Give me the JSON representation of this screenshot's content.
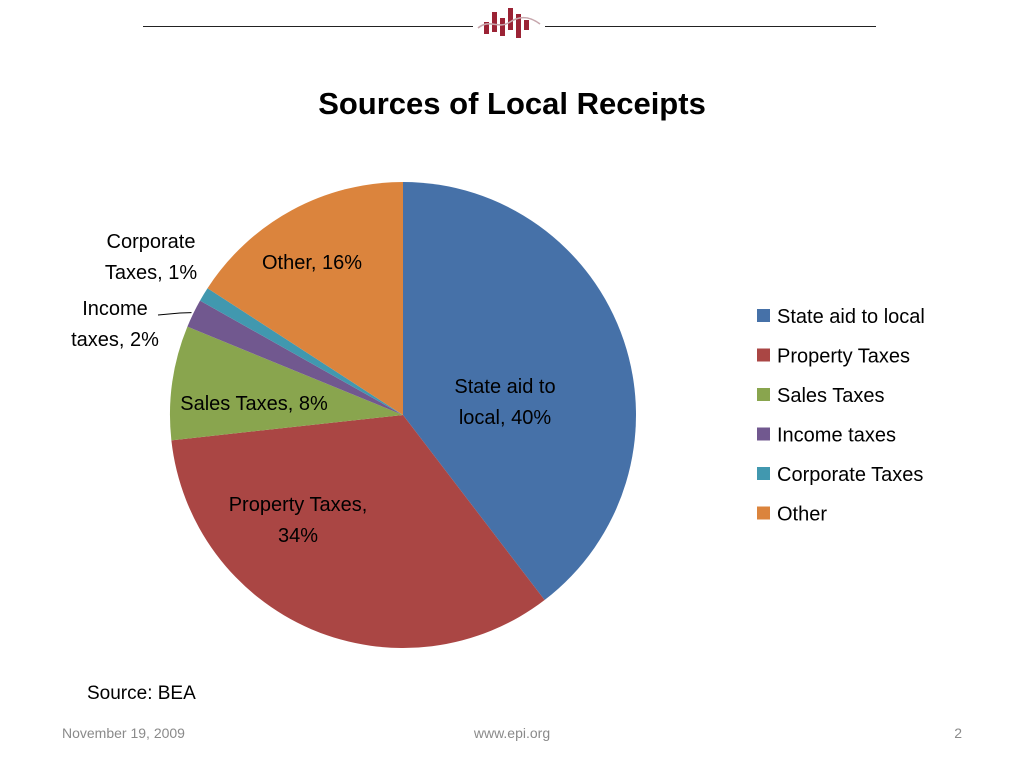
{
  "logo": {
    "icon": "epi-logo-icon",
    "color": "#9b2335"
  },
  "chart_data": {
    "type": "pie",
    "title": "Sources of Local Receipts",
    "categories": [
      "State aid to local",
      "Property Taxes",
      "Sales Taxes",
      "Income taxes",
      "Corporate Taxes",
      "Other"
    ],
    "values": [
      40,
      34,
      8,
      2,
      1,
      16
    ],
    "colors": [
      "#4671a8",
      "#aa4644",
      "#89a54e",
      "#71588f",
      "#4198af",
      "#db843d"
    ],
    "data_labels": [
      "State aid to local, 40%",
      "Property Taxes, 34%",
      "Sales Taxes, 8%",
      "Income taxes, 2%",
      "Corporate Taxes, 1%",
      "Other, 16%"
    ],
    "legend": {
      "placement": "right",
      "entries": [
        "State aid to local",
        "Property Taxes",
        "Sales Taxes",
        "Income taxes",
        "Corporate Taxes",
        "Other"
      ]
    },
    "start": "12 o'clock",
    "direction": "clockwise"
  },
  "source": "Source: BEA",
  "footer": {
    "date": "November 19, 2009",
    "url": "www.epi.org",
    "page": "2"
  }
}
